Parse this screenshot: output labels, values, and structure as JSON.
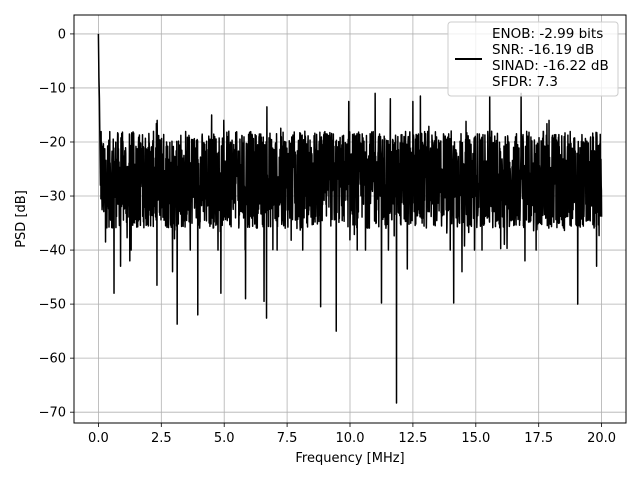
{
  "chart_data": {
    "type": "line",
    "title": "",
    "xlabel": "Frequency [MHz]",
    "ylabel": "PSD [dB]",
    "xlim": [
      -0.97,
      20.97
    ],
    "ylim": [
      -72,
      3.5
    ],
    "xticks": [
      0.0,
      2.5,
      5.0,
      7.5,
      10.0,
      12.5,
      15.0,
      17.5,
      20.0
    ],
    "xtick_labels": [
      "0.0",
      "2.5",
      "5.0",
      "7.5",
      "10.0",
      "12.5",
      "15.0",
      "17.5",
      "20.0"
    ],
    "yticks": [
      0,
      -10,
      -20,
      -30,
      -40,
      -50,
      -60,
      -70
    ],
    "ytick_labels": [
      "0",
      "−10",
      "−20",
      "−30",
      "−40",
      "−50",
      "−60",
      "−70"
    ],
    "grid": true,
    "legend_position": "top-right",
    "line_color": "#000000",
    "series": [
      {
        "x": [
          0.0,
          0.02,
          0.04,
          0.06,
          0.08,
          0.1
        ],
        "values": [
          0,
          -8,
          -12,
          -20,
          -28,
          -22
        ],
        "noise_floor": {
          "x_range": [
            0.1,
            20.0
          ],
          "mean": -27,
          "upper_envelope": -16,
          "lower_envelope": -40
        },
        "notable_dips": [
          {
            "x": 0.28,
            "y": -38.5
          },
          {
            "x": 0.62,
            "y": -48
          },
          {
            "x": 0.88,
            "y": -43
          },
          {
            "x": 1.25,
            "y": -42
          },
          {
            "x": 2.33,
            "y": -46.5
          },
          {
            "x": 2.95,
            "y": -44
          },
          {
            "x": 3.13,
            "y": -53.7
          },
          {
            "x": 3.95,
            "y": -52
          },
          {
            "x": 4.87,
            "y": -48
          },
          {
            "x": 5.85,
            "y": -49
          },
          {
            "x": 6.58,
            "y": -49.5
          },
          {
            "x": 6.68,
            "y": -52.6
          },
          {
            "x": 8.83,
            "y": -50.5
          },
          {
            "x": 9.45,
            "y": -55
          },
          {
            "x": 11.25,
            "y": -49.8
          },
          {
            "x": 11.85,
            "y": -68.3
          },
          {
            "x": 12.28,
            "y": -43.5
          },
          {
            "x": 14.12,
            "y": -49.8
          },
          {
            "x": 14.45,
            "y": -44
          },
          {
            "x": 16.95,
            "y": -42
          },
          {
            "x": 19.05,
            "y": -50
          },
          {
            "x": 19.8,
            "y": -43
          }
        ],
        "notable_peaks": [
          {
            "x": 4.5,
            "y": -15
          },
          {
            "x": 6.7,
            "y": -13.5
          },
          {
            "x": 9.95,
            "y": -12.5
          },
          {
            "x": 11.0,
            "y": -11
          },
          {
            "x": 11.6,
            "y": -12
          },
          {
            "x": 12.5,
            "y": -12.5
          },
          {
            "x": 12.8,
            "y": -11.5
          },
          {
            "x": 15.55,
            "y": -11.5
          },
          {
            "x": 16.8,
            "y": -11
          }
        ]
      }
    ],
    "legend": {
      "lines": [
        "ENOB: -2.99 bits",
        "SNR: -16.19 dB",
        "SINAD: -16.22 dB",
        "SFDR: 7.3"
      ]
    }
  }
}
